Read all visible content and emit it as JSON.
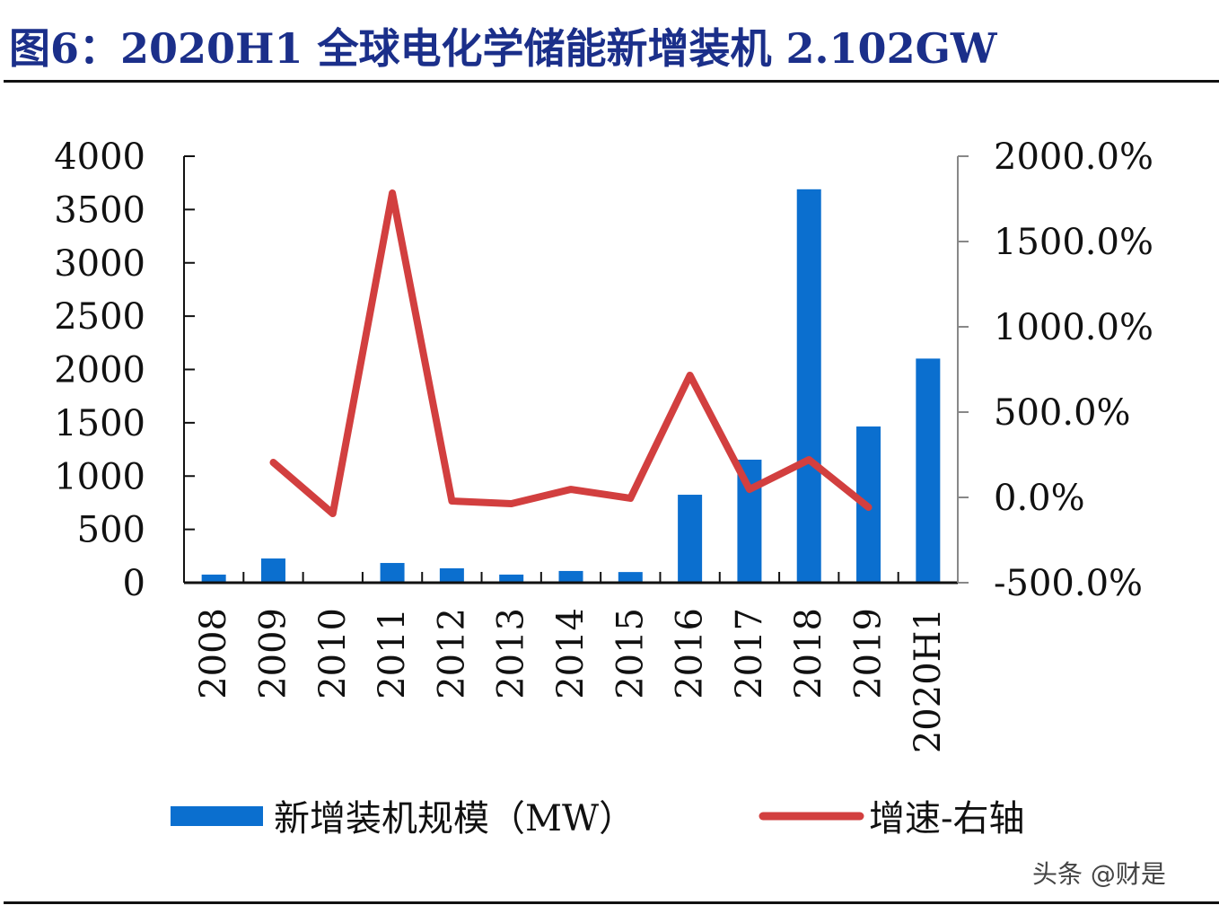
{
  "title": "图6：2020H1 全球电化学储能新增装机 2.102GW",
  "watermark": "头条 @财是",
  "chart_data": {
    "type": "bar+line",
    "categories": [
      "2008",
      "2009",
      "2010",
      "2011",
      "2012",
      "2013",
      "2014",
      "2015",
      "2016",
      "2017",
      "2018",
      "2019",
      "2020H1"
    ],
    "series": [
      {
        "name": "新增装机规模（MW）",
        "type": "bar",
        "axis": "left",
        "color": "#0b6fcf",
        "values": [
          76,
          227,
          0,
          185,
          135,
          76,
          110,
          100,
          825,
          1154,
          3690,
          1465,
          2102
        ]
      },
      {
        "name": "增速-右轴",
        "type": "line",
        "axis": "right",
        "color": "#d23f3f",
        "values": [
          null,
          205,
          -95,
          1784,
          -21,
          -37,
          47,
          -5,
          716,
          47,
          221,
          -58,
          null
        ]
      }
    ],
    "left_axis": {
      "ylim": [
        0,
        4000
      ],
      "ticks": [
        "0",
        "500",
        "1000",
        "1500",
        "2000",
        "2500",
        "3000",
        "3500",
        "4000"
      ]
    },
    "right_axis": {
      "ylim": [
        -500,
        2000
      ],
      "ticks": [
        "-500.0%",
        "0.0%",
        "500.0%",
        "1000.0%",
        "1500.0%",
        "2000.0%"
      ]
    },
    "grid": false,
    "legend_position": "bottom"
  }
}
